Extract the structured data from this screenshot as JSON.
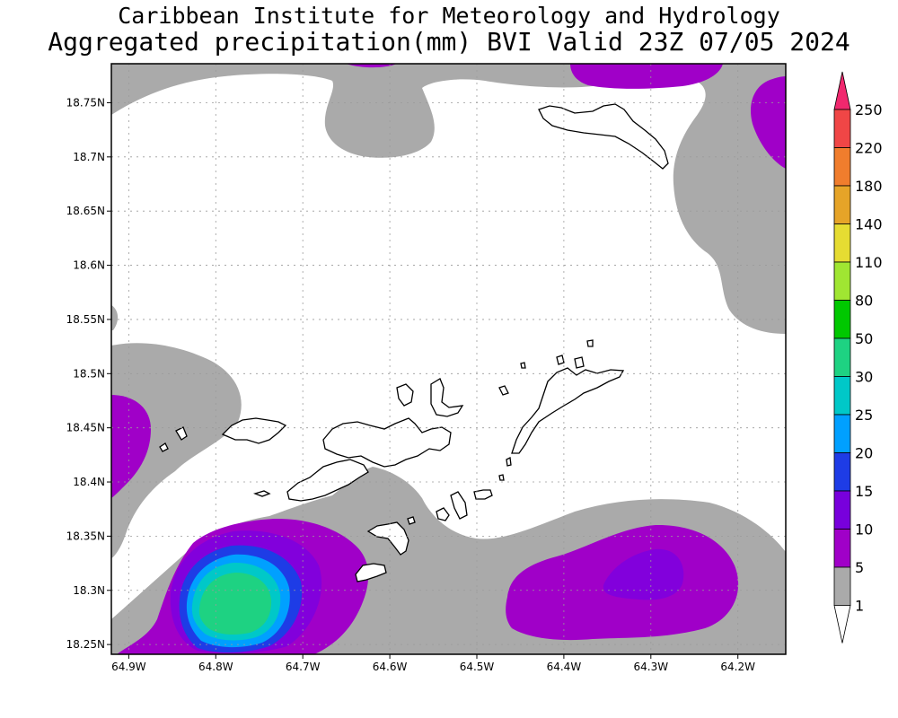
{
  "header": {
    "title": "Caribbean Institute for Meteorology and Hydrology",
    "subtitle": "Aggregated precipitation(mm) BVI Valid 23Z 07/05 2024"
  },
  "map": {
    "lat_labels": [
      "18.75N",
      "18.7N",
      "18.65N",
      "18.6N",
      "18.55N",
      "18.5N",
      "18.45N",
      "18.4N",
      "18.35N",
      "18.3N",
      "18.25N"
    ],
    "lon_labels": [
      "64.9W",
      "64.8W",
      "64.7W",
      "64.6W",
      "64.5W",
      "64.4W",
      "64.3W",
      "64.2W"
    ],
    "lat_values": [
      18.75,
      18.7,
      18.65,
      18.6,
      18.55,
      18.5,
      18.45,
      18.4,
      18.35,
      18.3,
      18.25
    ],
    "lon_values": [
      -64.9,
      -64.8,
      -64.7,
      -64.6,
      -64.5,
      -64.4,
      -64.3,
      -64.2
    ],
    "extent": {
      "lon_min": -64.92,
      "lon_max": -64.145,
      "lat_min": 18.241,
      "lat_max": 18.786
    },
    "grid": true
  },
  "colorbar": {
    "labels": [
      "250",
      "220",
      "180",
      "140",
      "110",
      "80",
      "50",
      "30",
      "25",
      "20",
      "15",
      "10",
      "5",
      "1"
    ],
    "colors": [
      "#f0286e",
      "#f04646",
      "#f07d2d",
      "#e6a428",
      "#e6dc32",
      "#a0e632",
      "#00c800",
      "#1ed282",
      "#00c8c8",
      "#00a0ff",
      "#1e3ce6",
      "#7800dc",
      "#a000c8",
      "#aaaaaa",
      "#ffffff"
    ]
  },
  "colors": {
    "gray": "#aaaaaa",
    "purple1": "#a000c8",
    "purple2": "#8200dc",
    "blue": "#1e3ce6",
    "lightblue": "#00a0ff",
    "cyan": "#00c8c8",
    "green": "#1ed282"
  }
}
